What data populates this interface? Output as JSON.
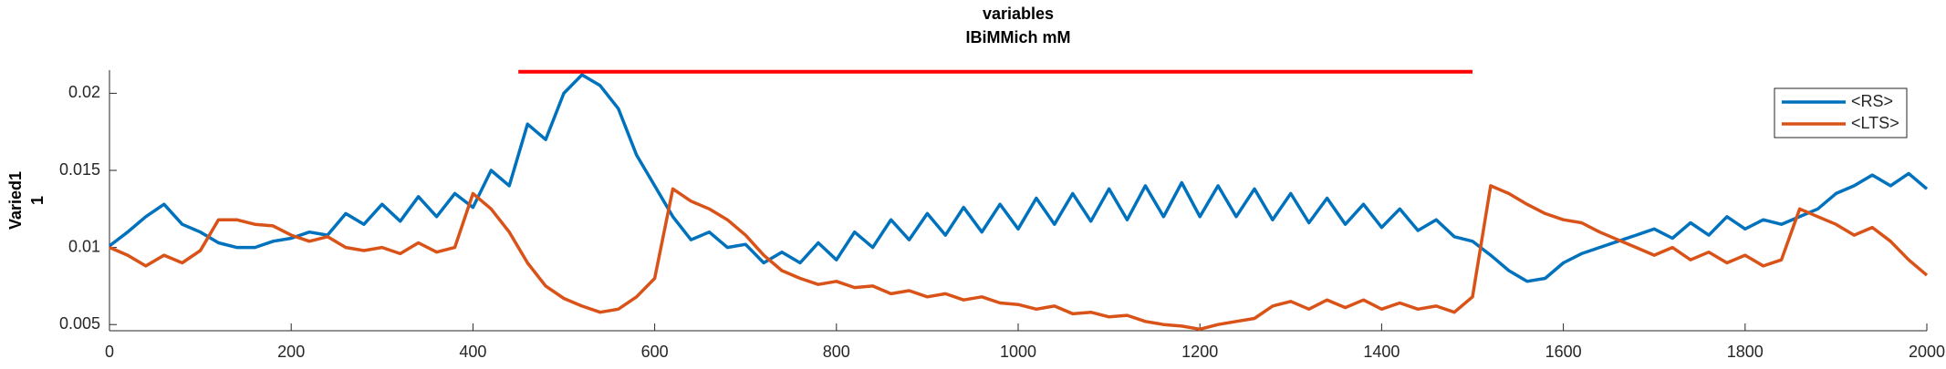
{
  "chart_data": {
    "type": "line",
    "title": "variables",
    "subtitle": "IBiMMich mM",
    "y_label": [
      "Varied1",
      "1"
    ],
    "x": [
      0,
      20,
      40,
      60,
      80,
      100,
      120,
      140,
      160,
      180,
      200,
      220,
      240,
      260,
      280,
      300,
      320,
      340,
      360,
      380,
      400,
      420,
      440,
      460,
      480,
      500,
      520,
      540,
      560,
      580,
      600,
      620,
      640,
      660,
      680,
      700,
      720,
      740,
      760,
      780,
      800,
      820,
      840,
      860,
      880,
      900,
      920,
      940,
      960,
      980,
      1000,
      1020,
      1040,
      1060,
      1080,
      1100,
      1120,
      1140,
      1160,
      1180,
      1200,
      1220,
      1240,
      1260,
      1280,
      1300,
      1320,
      1340,
      1360,
      1380,
      1400,
      1420,
      1440,
      1460,
      1480,
      1500,
      1520,
      1540,
      1560,
      1580,
      1600,
      1620,
      1640,
      1660,
      1680,
      1700,
      1720,
      1740,
      1760,
      1780,
      1800,
      1820,
      1840,
      1860,
      1880,
      1900,
      1920,
      1940,
      1960,
      1980,
      2000
    ],
    "series": [
      {
        "name": "<RS>",
        "color": "#0072BD",
        "values": [
          0.0101,
          0.011,
          0.012,
          0.0128,
          0.0115,
          0.011,
          0.0103,
          0.01,
          0.01,
          0.0104,
          0.0106,
          0.011,
          0.0108,
          0.0122,
          0.0115,
          0.0128,
          0.0117,
          0.0133,
          0.012,
          0.0135,
          0.0126,
          0.015,
          0.014,
          0.018,
          0.017,
          0.02,
          0.0212,
          0.0205,
          0.019,
          0.016,
          0.014,
          0.012,
          0.0105,
          0.011,
          0.01,
          0.0102,
          0.009,
          0.0097,
          0.009,
          0.0103,
          0.0092,
          0.011,
          0.01,
          0.0118,
          0.0105,
          0.0122,
          0.0108,
          0.0126,
          0.011,
          0.0128,
          0.0112,
          0.0132,
          0.0115,
          0.0135,
          0.0117,
          0.0138,
          0.0118,
          0.014,
          0.012,
          0.0142,
          0.012,
          0.014,
          0.012,
          0.0138,
          0.0118,
          0.0135,
          0.0116,
          0.0132,
          0.0115,
          0.0128,
          0.0113,
          0.0125,
          0.0111,
          0.0118,
          0.0107,
          0.0104,
          0.0095,
          0.0085,
          0.0078,
          0.008,
          0.009,
          0.0096,
          0.01,
          0.0104,
          0.0108,
          0.0112,
          0.0106,
          0.0116,
          0.0108,
          0.012,
          0.0112,
          0.0118,
          0.0115,
          0.012,
          0.0125,
          0.0135,
          0.014,
          0.0147,
          0.014,
          0.0148,
          0.0138
        ]
      },
      {
        "name": "<LTS>",
        "color": "#D95319",
        "values": [
          0.01,
          0.0095,
          0.0088,
          0.0095,
          0.009,
          0.0098,
          0.0118,
          0.0118,
          0.0115,
          0.0114,
          0.0108,
          0.0104,
          0.0107,
          0.01,
          0.0098,
          0.01,
          0.0096,
          0.0103,
          0.0097,
          0.01,
          0.0135,
          0.0125,
          0.011,
          0.009,
          0.0075,
          0.0067,
          0.0062,
          0.0058,
          0.006,
          0.0068,
          0.008,
          0.0138,
          0.013,
          0.0125,
          0.0118,
          0.0108,
          0.0095,
          0.0085,
          0.008,
          0.0076,
          0.0078,
          0.0074,
          0.0075,
          0.007,
          0.0072,
          0.0068,
          0.007,
          0.0066,
          0.0068,
          0.0064,
          0.0063,
          0.006,
          0.0062,
          0.0057,
          0.0058,
          0.0055,
          0.0056,
          0.0052,
          0.005,
          0.0049,
          0.0047,
          0.005,
          0.0052,
          0.0054,
          0.0062,
          0.0065,
          0.006,
          0.0066,
          0.0061,
          0.0066,
          0.006,
          0.0064,
          0.006,
          0.0062,
          0.0058,
          0.0068,
          0.014,
          0.0135,
          0.0128,
          0.0122,
          0.0118,
          0.0116,
          0.011,
          0.0105,
          0.01,
          0.0095,
          0.01,
          0.0092,
          0.0097,
          0.009,
          0.0095,
          0.0088,
          0.0092,
          0.0125,
          0.012,
          0.0115,
          0.0108,
          0.0113,
          0.0104,
          0.0092,
          0.0082
        ]
      }
    ],
    "hline": {
      "x": [
        450,
        1500
      ],
      "y": 0.0214,
      "color": "#FF0000"
    },
    "xlim": [
      0,
      2000
    ],
    "xticks": [
      0,
      200,
      400,
      600,
      800,
      1000,
      1200,
      1400,
      1600,
      1800,
      2000
    ],
    "ylim": [
      0.0046,
      0.0215
    ],
    "yticks": [
      0.005,
      0.01,
      0.015,
      0.02
    ],
    "legend": "upper-right"
  }
}
